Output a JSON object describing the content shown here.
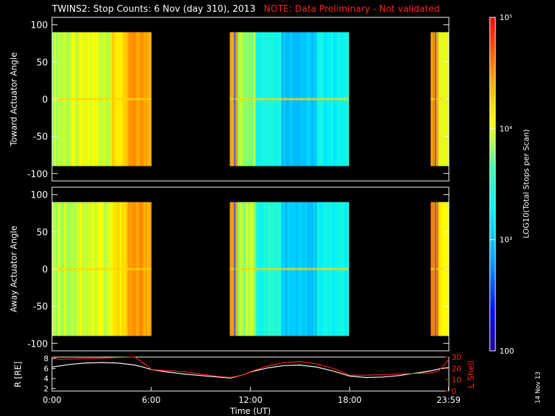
{
  "title": "TWINS2: Stop Counts:  6 Nov (day 310), 2013",
  "note": "NOTE: Data Preliminary - Not validated",
  "stamp": "14 Nov 13",
  "colors": {
    "background": "#000000",
    "axes": "#ffffff",
    "note": "#ff2020",
    "lshell": "#ff2020",
    "radius": "#ffffff"
  },
  "chart_data": [
    {
      "type": "heatmap",
      "ylabel": "Toward Actuator Angle",
      "ylim": [
        -110,
        110
      ],
      "yticks": [
        100,
        50,
        0,
        -50,
        -100
      ],
      "xlim": [
        0,
        24
      ],
      "data_angle_range": [
        -90,
        90
      ],
      "segments": [
        {
          "start": 0.0,
          "end": 6.0
        },
        {
          "start": 10.75,
          "end": 17.95
        },
        {
          "start": 22.9,
          "end": 24.0
        }
      ],
      "scale": "log",
      "colorbar": {
        "label": "LOG10(Total Stops per Scan)",
        "range": [
          100,
          100000
        ],
        "ticks": [
          {
            "value": 100,
            "label": "100"
          },
          {
            "value": 1000,
            "label": "10³"
          },
          {
            "value": 10000,
            "label": "10⁴"
          },
          {
            "value": 100000,
            "label": "10⁵"
          }
        ]
      }
    },
    {
      "type": "heatmap",
      "ylabel": "Away Actuator Angle",
      "ylim": [
        -110,
        110
      ],
      "yticks": [
        100,
        50,
        0,
        -50,
        -100
      ],
      "xlim": [
        0,
        24
      ],
      "data_angle_range": [
        -90,
        90
      ],
      "segments": [
        {
          "start": 0.0,
          "end": 6.0
        },
        {
          "start": 10.75,
          "end": 17.95
        },
        {
          "start": 22.9,
          "end": 24.0
        }
      ]
    },
    {
      "type": "line",
      "xlabel": "Time (UT)",
      "xlim": [
        0,
        24
      ],
      "xticks": [
        {
          "value": 0,
          "label": "0:00"
        },
        {
          "value": 6,
          "label": "6:00"
        },
        {
          "value": 12,
          "label": "12:00"
        },
        {
          "value": 18,
          "label": "18:00"
        },
        {
          "value": 23.983,
          "label": "23:59"
        }
      ],
      "ylabel": "R [RE]",
      "ylim": [
        1.5,
        8.3
      ],
      "yticks": [
        2,
        4,
        6,
        8
      ],
      "y2label": "L Shell",
      "y2lim": [
        0,
        30
      ],
      "y2ticks": [
        0,
        10,
        20,
        30
      ],
      "series": [
        {
          "axis": "left",
          "x": [
            0,
            1,
            2,
            3,
            4,
            5,
            5.5,
            6,
            7,
            8,
            9,
            10,
            10.8,
            11.5,
            12,
            13,
            14,
            15,
            16,
            17,
            18,
            19,
            20,
            21,
            22,
            23,
            23.5,
            24
          ],
          "values": [
            6.3,
            6.8,
            7.1,
            7.2,
            7.1,
            6.7,
            6.3,
            5.8,
            5.3,
            4.9,
            4.6,
            4.3,
            4.1,
            4.7,
            5.3,
            6.1,
            6.6,
            6.7,
            6.3,
            5.5,
            4.5,
            4.2,
            4.3,
            4.6,
            5.1,
            5.6,
            6.0,
            6.2
          ]
        },
        {
          "axis": "right",
          "x": [
            0,
            0.4,
            5.0,
            5.8,
            6.0,
            7,
            8,
            9,
            10,
            10.8,
            11.5,
            12,
            13,
            14,
            15,
            16,
            17,
            18,
            19,
            20,
            21,
            22,
            23,
            23.4,
            24
          ],
          "values": [
            30,
            28,
            30,
            22,
            19,
            18,
            17,
            15,
            13,
            12,
            14,
            17,
            22,
            25,
            26,
            24,
            20,
            14,
            14,
            14.5,
            15,
            15.5,
            16,
            18,
            28
          ]
        }
      ]
    }
  ]
}
